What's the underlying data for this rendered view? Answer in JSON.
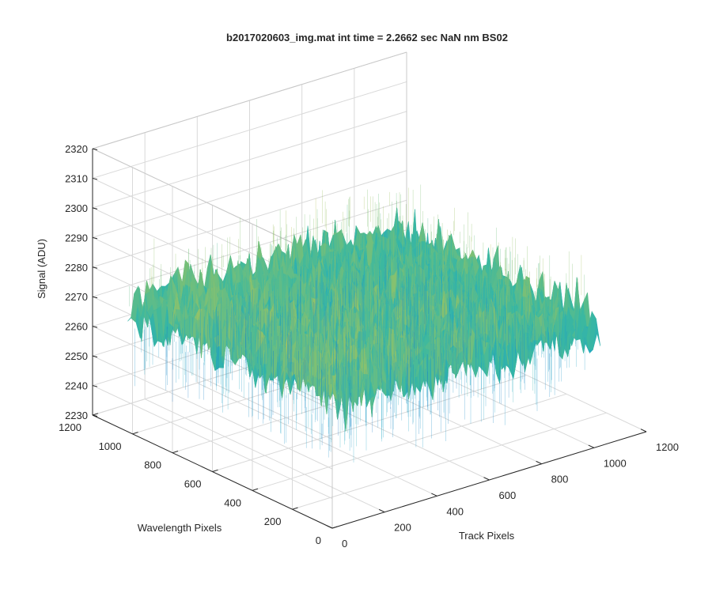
{
  "chart_data": {
    "type": "surface",
    "title": "b2017020603_img.mat int time = 2.2662 sec  NaN nm BS02",
    "xlabel": "Track Pixels",
    "ylabel": "Wavelength Pixels",
    "zlabel": "Signal (ADU)",
    "xlim": [
      0,
      1200
    ],
    "ylim": [
      0,
      1200
    ],
    "zlim": [
      2230,
      2320
    ],
    "x_ticks": [
      "0",
      "200",
      "400",
      "600",
      "800",
      "1000",
      "1200"
    ],
    "y_ticks": [
      "0",
      "200",
      "400",
      "600",
      "800",
      "1000",
      "1200"
    ],
    "z_ticks": [
      "2230",
      "2240",
      "2250",
      "2260",
      "2270",
      "2280",
      "2290",
      "2300",
      "2310",
      "2320"
    ],
    "surface_extent": {
      "x": [
        0,
        1024
      ],
      "y": [
        0,
        1024
      ],
      "typical_z_range": [
        2250,
        2290
      ],
      "mean_z": 2272
    },
    "grid": true,
    "colormap": "parula",
    "colors": {
      "low": "#0f5fc2",
      "mid_low": "#1da5c9",
      "mid": "#3bb8a0",
      "mid_high": "#8ec26a",
      "high": "#d6c24a"
    }
  }
}
